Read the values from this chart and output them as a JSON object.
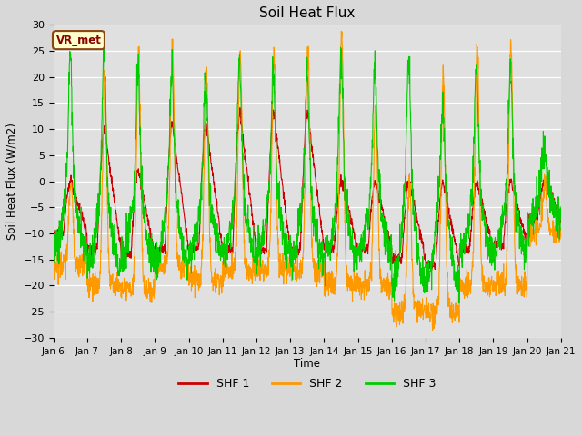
{
  "title": "Soil Heat Flux",
  "ylabel": "Soil Heat Flux (W/m2)",
  "xlabel": "Time",
  "ylim": [
    -30,
    30
  ],
  "yticks": [
    -30,
    -25,
    -20,
    -15,
    -10,
    -5,
    0,
    5,
    10,
    15,
    20,
    25,
    30
  ],
  "colors": {
    "SHF 1": "#cc0000",
    "SHF 2": "#ff9900",
    "SHF 3": "#00cc00"
  },
  "legend_label": "VR_met",
  "bg_color": "#e0e0e0",
  "fig_bg": "#d8d8d8",
  "n_days": 15,
  "xtick_labels": [
    "Jan 6",
    "Jan 7",
    "Jan 8",
    "Jan 9",
    "Jan 10",
    "Jan 11",
    "Jan 12",
    "Jan 13",
    "Jan 14",
    "Jan 15",
    "Jan 16",
    "Jan 17",
    "Jan 18",
    "Jan 19",
    "Jan 20",
    "Jan 21"
  ],
  "shf1_peaks": [
    0,
    10,
    2,
    11,
    11,
    13,
    13,
    13,
    0,
    0,
    0,
    0,
    0,
    0,
    0
  ],
  "shf2_peaks": [
    0,
    20,
    25,
    26,
    21,
    25,
    24,
    26,
    28,
    14,
    0,
    21,
    26,
    26,
    0
  ],
  "shf3_peaks": [
    25,
    25,
    22,
    21,
    20,
    23,
    21,
    21,
    24,
    22,
    23,
    13,
    22,
    22,
    6
  ],
  "shf1_nights": [
    -10,
    -13,
    -14,
    -13,
    -13,
    -13,
    -13,
    -13,
    -13,
    -13,
    -15,
    -16,
    -13,
    -12,
    -7
  ],
  "shf2_nights": [
    -16,
    -20,
    -21,
    -16,
    -19,
    -17,
    -17,
    -17,
    -20,
    -20,
    -25,
    -25,
    -20,
    -20,
    -10
  ],
  "shf3_nights": [
    -13,
    -17,
    -15,
    -16,
    -14,
    -14,
    -14,
    -15,
    -15,
    -14,
    -20,
    -20,
    -14,
    -14,
    -8
  ]
}
